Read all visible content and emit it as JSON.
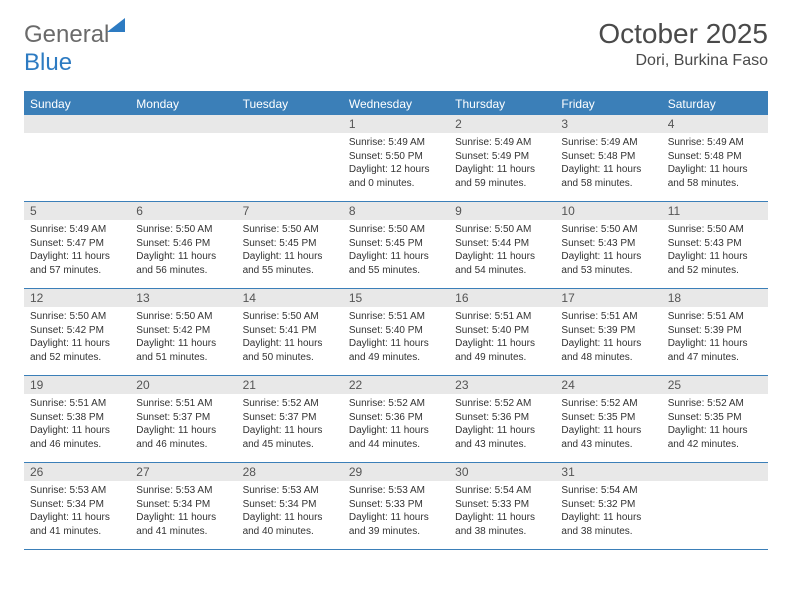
{
  "brand": {
    "part1": "General",
    "part2": "Blue"
  },
  "title": "October 2025",
  "location": "Dori, Burkina Faso",
  "colors": {
    "header_bg": "#3b7fb8",
    "header_text": "#ffffff",
    "daynum_bg": "#e8e8e8",
    "border": "#3b7fb8",
    "brand_grey": "#6a6a6a",
    "brand_blue": "#2d7bc2"
  },
  "days_of_week": [
    "Sunday",
    "Monday",
    "Tuesday",
    "Wednesday",
    "Thursday",
    "Friday",
    "Saturday"
  ],
  "weeks": [
    [
      null,
      null,
      null,
      {
        "n": "1",
        "sr": "5:49 AM",
        "ss": "5:50 PM",
        "dl": "12 hours and 0 minutes."
      },
      {
        "n": "2",
        "sr": "5:49 AM",
        "ss": "5:49 PM",
        "dl": "11 hours and 59 minutes."
      },
      {
        "n": "3",
        "sr": "5:49 AM",
        "ss": "5:48 PM",
        "dl": "11 hours and 58 minutes."
      },
      {
        "n": "4",
        "sr": "5:49 AM",
        "ss": "5:48 PM",
        "dl": "11 hours and 58 minutes."
      }
    ],
    [
      {
        "n": "5",
        "sr": "5:49 AM",
        "ss": "5:47 PM",
        "dl": "11 hours and 57 minutes."
      },
      {
        "n": "6",
        "sr": "5:50 AM",
        "ss": "5:46 PM",
        "dl": "11 hours and 56 minutes."
      },
      {
        "n": "7",
        "sr": "5:50 AM",
        "ss": "5:45 PM",
        "dl": "11 hours and 55 minutes."
      },
      {
        "n": "8",
        "sr": "5:50 AM",
        "ss": "5:45 PM",
        "dl": "11 hours and 55 minutes."
      },
      {
        "n": "9",
        "sr": "5:50 AM",
        "ss": "5:44 PM",
        "dl": "11 hours and 54 minutes."
      },
      {
        "n": "10",
        "sr": "5:50 AM",
        "ss": "5:43 PM",
        "dl": "11 hours and 53 minutes."
      },
      {
        "n": "11",
        "sr": "5:50 AM",
        "ss": "5:43 PM",
        "dl": "11 hours and 52 minutes."
      }
    ],
    [
      {
        "n": "12",
        "sr": "5:50 AM",
        "ss": "5:42 PM",
        "dl": "11 hours and 52 minutes."
      },
      {
        "n": "13",
        "sr": "5:50 AM",
        "ss": "5:42 PM",
        "dl": "11 hours and 51 minutes."
      },
      {
        "n": "14",
        "sr": "5:50 AM",
        "ss": "5:41 PM",
        "dl": "11 hours and 50 minutes."
      },
      {
        "n": "15",
        "sr": "5:51 AM",
        "ss": "5:40 PM",
        "dl": "11 hours and 49 minutes."
      },
      {
        "n": "16",
        "sr": "5:51 AM",
        "ss": "5:40 PM",
        "dl": "11 hours and 49 minutes."
      },
      {
        "n": "17",
        "sr": "5:51 AM",
        "ss": "5:39 PM",
        "dl": "11 hours and 48 minutes."
      },
      {
        "n": "18",
        "sr": "5:51 AM",
        "ss": "5:39 PM",
        "dl": "11 hours and 47 minutes."
      }
    ],
    [
      {
        "n": "19",
        "sr": "5:51 AM",
        "ss": "5:38 PM",
        "dl": "11 hours and 46 minutes."
      },
      {
        "n": "20",
        "sr": "5:51 AM",
        "ss": "5:37 PM",
        "dl": "11 hours and 46 minutes."
      },
      {
        "n": "21",
        "sr": "5:52 AM",
        "ss": "5:37 PM",
        "dl": "11 hours and 45 minutes."
      },
      {
        "n": "22",
        "sr": "5:52 AM",
        "ss": "5:36 PM",
        "dl": "11 hours and 44 minutes."
      },
      {
        "n": "23",
        "sr": "5:52 AM",
        "ss": "5:36 PM",
        "dl": "11 hours and 43 minutes."
      },
      {
        "n": "24",
        "sr": "5:52 AM",
        "ss": "5:35 PM",
        "dl": "11 hours and 43 minutes."
      },
      {
        "n": "25",
        "sr": "5:52 AM",
        "ss": "5:35 PM",
        "dl": "11 hours and 42 minutes."
      }
    ],
    [
      {
        "n": "26",
        "sr": "5:53 AM",
        "ss": "5:34 PM",
        "dl": "11 hours and 41 minutes."
      },
      {
        "n": "27",
        "sr": "5:53 AM",
        "ss": "5:34 PM",
        "dl": "11 hours and 41 minutes."
      },
      {
        "n": "28",
        "sr": "5:53 AM",
        "ss": "5:34 PM",
        "dl": "11 hours and 40 minutes."
      },
      {
        "n": "29",
        "sr": "5:53 AM",
        "ss": "5:33 PM",
        "dl": "11 hours and 39 minutes."
      },
      {
        "n": "30",
        "sr": "5:54 AM",
        "ss": "5:33 PM",
        "dl": "11 hours and 38 minutes."
      },
      {
        "n": "31",
        "sr": "5:54 AM",
        "ss": "5:32 PM",
        "dl": "11 hours and 38 minutes."
      },
      null
    ]
  ],
  "labels": {
    "sunrise": "Sunrise:",
    "sunset": "Sunset:",
    "daylight": "Daylight:"
  }
}
